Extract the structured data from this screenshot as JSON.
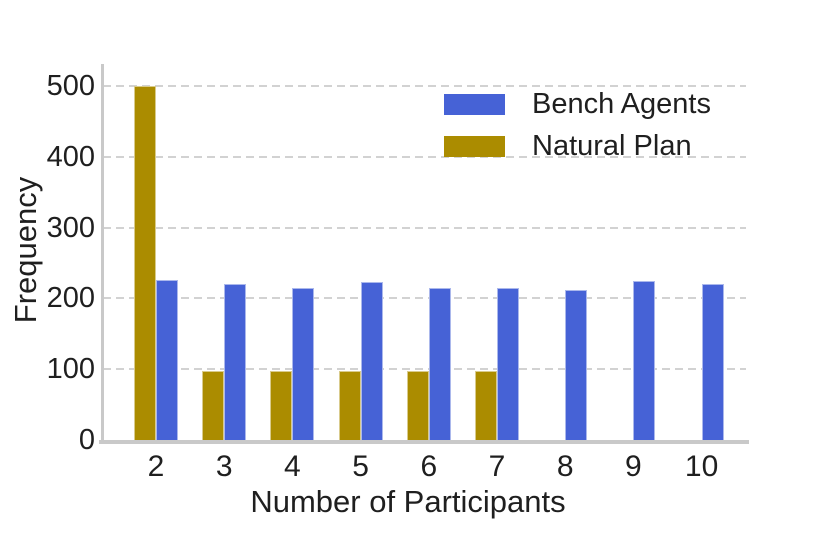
{
  "figure": {
    "background": "#ffffff"
  },
  "chart_data": {
    "type": "bar",
    "title": "",
    "xlabel": "Number of Participants",
    "ylabel": "Frequency",
    "categories": [
      "2",
      "3",
      "4",
      "5",
      "6",
      "7",
      "8",
      "9",
      "10"
    ],
    "series": [
      {
        "name": "Bench Agents",
        "color": "#4662d6",
        "values": [
          226,
          221,
          214,
          223,
          214,
          214,
          212,
          225,
          220
        ]
      },
      {
        "name": "Natural Plan",
        "color": "#ab8c00",
        "values": [
          500,
          98,
          98,
          98,
          98,
          98,
          0,
          0,
          0
        ]
      }
    ],
    "yticks": [
      0,
      100,
      200,
      300,
      400,
      500
    ],
    "ylim": [
      0,
      530
    ],
    "grid": "horizontal dashed",
    "legend_position": "upper right",
    "grid_color": "#d2d2d2",
    "axis_color": "#c9c9c9",
    "text_color": "#1f1f1f"
  }
}
